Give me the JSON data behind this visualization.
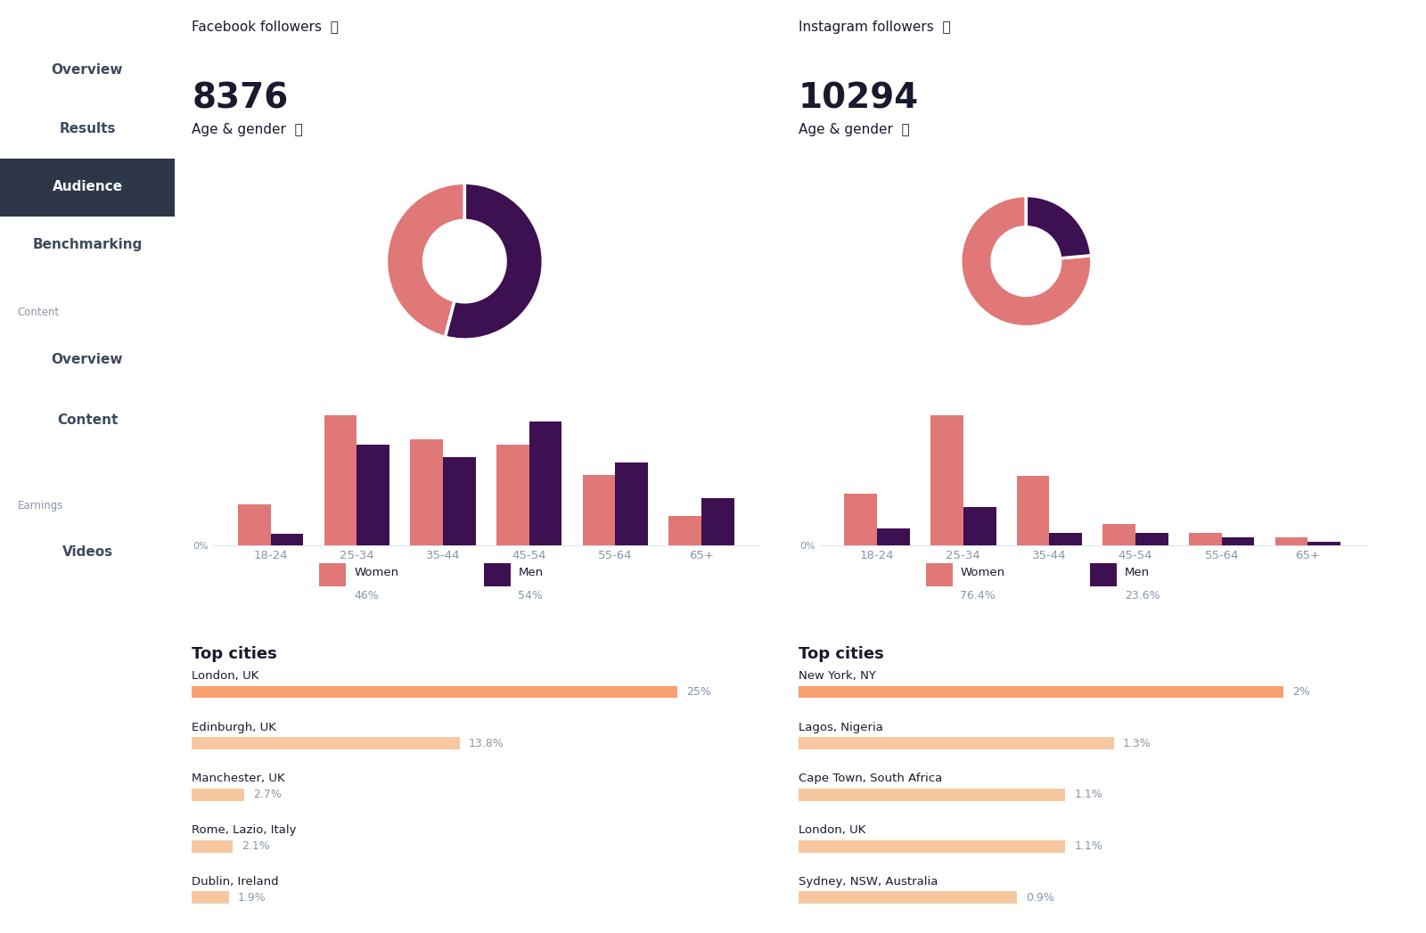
{
  "sidebar_bg": "#dce8f0",
  "sidebar_active_bg": "#2d3748",
  "sidebar_active_text": "#ffffff",
  "sidebar_text": "#3d4a5c",
  "main_bg": "#ffffff",
  "nav_items": [
    "Overview",
    "Results",
    "Audience",
    "Benchmarking"
  ],
  "active_nav": "Audience",
  "content_label": "Content",
  "content_nav": [
    "Overview",
    "Content"
  ],
  "earnings_label": "Earnings",
  "earnings_nav": [
    "Videos"
  ],
  "fb_label": "Facebook followers",
  "fb_count": "8376",
  "ig_label": "Instagram followers",
  "ig_count": "10294",
  "age_gender_label": "Age & gender",
  "fb_donut_women": 46,
  "fb_donut_men": 54,
  "ig_donut_women": 76.4,
  "ig_donut_men": 23.6,
  "donut_women_color": "#e07878",
  "donut_men_color": "#3d1052",
  "age_groups": [
    "18-24",
    "25-34",
    "35-44",
    "45-54",
    "55-64",
    "65+"
  ],
  "fb_women_vals": [
    3.5,
    11.0,
    9.0,
    8.5,
    6.0,
    2.5
  ],
  "fb_men_vals": [
    1.0,
    8.5,
    7.5,
    10.5,
    7.0,
    4.0
  ],
  "ig_women_vals": [
    6.0,
    15.0,
    8.0,
    2.5,
    1.5,
    1.0
  ],
  "ig_men_vals": [
    2.0,
    4.5,
    1.5,
    1.5,
    1.0,
    0.5
  ],
  "bar_women_color": "#e07878",
  "bar_men_color": "#3d1052",
  "fb_legend_women_pct": "46%",
  "fb_legend_men_pct": "54%",
  "ig_legend_women_pct": "76.4%",
  "ig_legend_men_pct": "23.6%",
  "top_cities_label": "Top cities",
  "fb_cities": [
    "London, UK",
    "Edinburgh, UK",
    "Manchester, UK",
    "Rome, Lazio, Italy",
    "Dublin, Ireland"
  ],
  "fb_city_pcts": [
    25.0,
    13.8,
    2.7,
    2.1,
    1.9
  ],
  "fb_city_labels": [
    "25%",
    "13.8%",
    "2.7%",
    "2.1%",
    "1.9%"
  ],
  "ig_cities": [
    "New York, NY",
    "Lagos, Nigeria",
    "Cape Town, South Africa",
    "London, UK",
    "Sydney, NSW, Australia"
  ],
  "ig_city_pcts": [
    2.0,
    1.3,
    1.1,
    1.1,
    0.9
  ],
  "ig_city_labels": [
    "2%",
    "1.3%",
    "1.1%",
    "1.1%",
    "0.9%"
  ],
  "bar_max_fb": 25.0,
  "bar_max_ig": 2.0,
  "city_bar_color": "#f7c8a0",
  "city_bar_full_color": "#f7a070",
  "text_dark": "#1a1a2e",
  "text_gray": "#8896a8",
  "info_color": "#aabbcc"
}
